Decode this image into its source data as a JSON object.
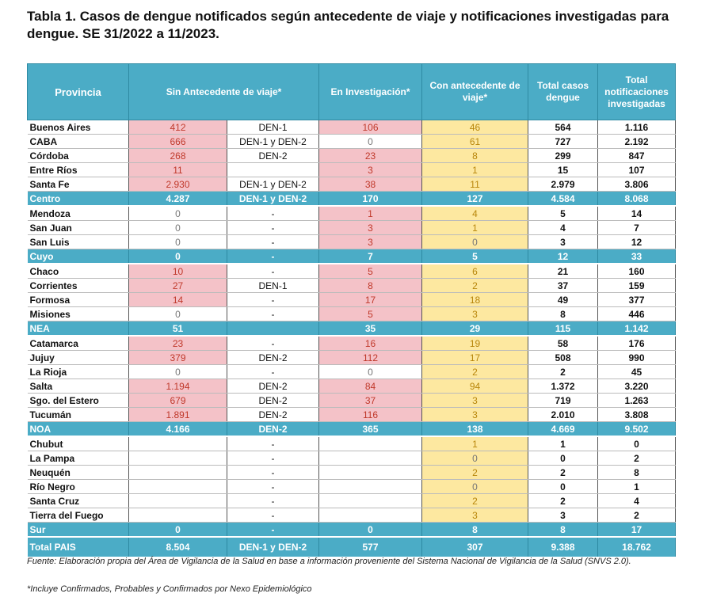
{
  "title": "Tabla 1. Casos de dengue notificados según antecedente de viaje y notificaciones investigadas para dengue. SE 31/2022 a 11/2023.",
  "headers": {
    "provincia": "Provincia",
    "sin_antecedente": "Sin Antecedente de viaje*",
    "en_investigacion": "En Investigación*",
    "con_antecedente": "Con antecedente de viaje*",
    "total_casos": "Total casos dengue",
    "total_notif": "Total notificaciones investigadas"
  },
  "rows": [
    {
      "n": "Buenos Aires",
      "s": "412",
      "st": "DEN-1",
      "i": "106",
      "c": "46",
      "t": "564",
      "tn": "1.116"
    },
    {
      "n": "CABA",
      "s": "666",
      "st": "DEN-1 y DEN-2",
      "i": "0",
      "c": "61",
      "t": "727",
      "tn": "2.192"
    },
    {
      "n": "Córdoba",
      "s": "268",
      "st": "DEN-2",
      "i": "23",
      "c": "8",
      "t": "299",
      "tn": "847"
    },
    {
      "n": "Entre Ríos",
      "s": "11",
      "st": "",
      "i": "3",
      "c": "1",
      "t": "15",
      "tn": "107"
    },
    {
      "n": "Santa Fe",
      "s": "2.930",
      "st": "DEN-1 y DEN-2",
      "i": "38",
      "c": "11",
      "t": "2.979",
      "tn": "3.806"
    },
    {
      "n": "Centro",
      "s": "4.287",
      "st": "DEN-1 y DEN-2",
      "i": "170",
      "c": "127",
      "t": "4.584",
      "tn": "8.068",
      "sum": true
    },
    {
      "n": "Mendoza",
      "s": "0",
      "st": "-",
      "i": "1",
      "c": "4",
      "t": "5",
      "tn": "14"
    },
    {
      "n": "San Juan",
      "s": "0",
      "st": "-",
      "i": "3",
      "c": "1",
      "t": "4",
      "tn": "7"
    },
    {
      "n": "San Luis",
      "s": "0",
      "st": "-",
      "i": "3",
      "c": "0",
      "t": "3",
      "tn": "12"
    },
    {
      "n": "Cuyo",
      "s": "0",
      "st": "-",
      "i": "7",
      "c": "5",
      "t": "12",
      "tn": "33",
      "sum": true
    },
    {
      "n": "Chaco",
      "s": "10",
      "st": "-",
      "i": "5",
      "c": "6",
      "t": "21",
      "tn": "160"
    },
    {
      "n": "Corrientes",
      "s": "27",
      "st": "DEN-1",
      "i": "8",
      "c": "2",
      "t": "37",
      "tn": "159"
    },
    {
      "n": "Formosa",
      "s": "14",
      "st": "-",
      "i": "17",
      "c": "18",
      "t": "49",
      "tn": "377"
    },
    {
      "n": "Misiones",
      "s": "0",
      "st": "-",
      "i": "5",
      "c": "3",
      "t": "8",
      "tn": "446"
    },
    {
      "n": "NEA",
      "s": "51",
      "st": "",
      "i": "35",
      "c": "29",
      "t": "115",
      "tn": "1.142",
      "sum": true
    },
    {
      "n": "Catamarca",
      "s": "23",
      "st": "-",
      "i": "16",
      "c": "19",
      "t": "58",
      "tn": "176"
    },
    {
      "n": "Jujuy",
      "s": "379",
      "st": "DEN-2",
      "i": "112",
      "c": "17",
      "t": "508",
      "tn": "990"
    },
    {
      "n": "La Rioja",
      "s": "0",
      "st": "-",
      "i": "0",
      "c": "2",
      "t": "2",
      "tn": "45"
    },
    {
      "n": "Salta",
      "s": "1.194",
      "st": "DEN-2",
      "i": "84",
      "c": "94",
      "t": "1.372",
      "tn": "3.220"
    },
    {
      "n": "Sgo. del Estero",
      "s": "679",
      "st": "DEN-2",
      "i": "37",
      "c": "3",
      "t": "719",
      "tn": "1.263"
    },
    {
      "n": "Tucumán",
      "s": "1.891",
      "st": "DEN-2",
      "i": "116",
      "c": "3",
      "t": "2.010",
      "tn": "3.808"
    },
    {
      "n": "NOA",
      "s": "4.166",
      "st": "DEN-2",
      "i": "365",
      "c": "138",
      "t": "4.669",
      "tn": "9.502",
      "sum": true
    },
    {
      "n": "Chubut",
      "s": "",
      "st": "-",
      "i": "",
      "c": "1",
      "t": "1",
      "tn": "0"
    },
    {
      "n": "La Pampa",
      "s": "",
      "st": "-",
      "i": "",
      "c": "0",
      "t": "0",
      "tn": "2"
    },
    {
      "n": "Neuquén",
      "s": "",
      "st": "-",
      "i": "",
      "c": "2",
      "t": "2",
      "tn": "8"
    },
    {
      "n": "Río Negro",
      "s": "",
      "st": "-",
      "i": "",
      "c": "0",
      "t": "0",
      "tn": "1"
    },
    {
      "n": "Santa Cruz",
      "s": "",
      "st": "-",
      "i": "",
      "c": "2",
      "t": "2",
      "tn": "4"
    },
    {
      "n": "Tierra del Fuego",
      "s": "",
      "st": "-",
      "i": "",
      "c": "3",
      "t": "3",
      "tn": "2"
    },
    {
      "n": "Sur",
      "s": "0",
      "st": "-",
      "i": "0",
      "c": "8",
      "t": "8",
      "tn": "17",
      "sum": true
    },
    {
      "n": "Total PAIS",
      "s": "8.504",
      "st": "DEN-1 y DEN-2",
      "i": "577",
      "c": "307",
      "t": "9.388",
      "tn": "18.762",
      "sum": true,
      "total": true
    }
  ],
  "footnote_source": "Fuente: Elaboración propia del Área de Vigilancia de la Salud en base a información proveniente del Sistema Nacional de Vigilancia de la Salud (SNVS 2.0).",
  "footnote_note": "*Incluye Confirmados, Probables y Confirmados por Nexo Epidemiológico"
}
